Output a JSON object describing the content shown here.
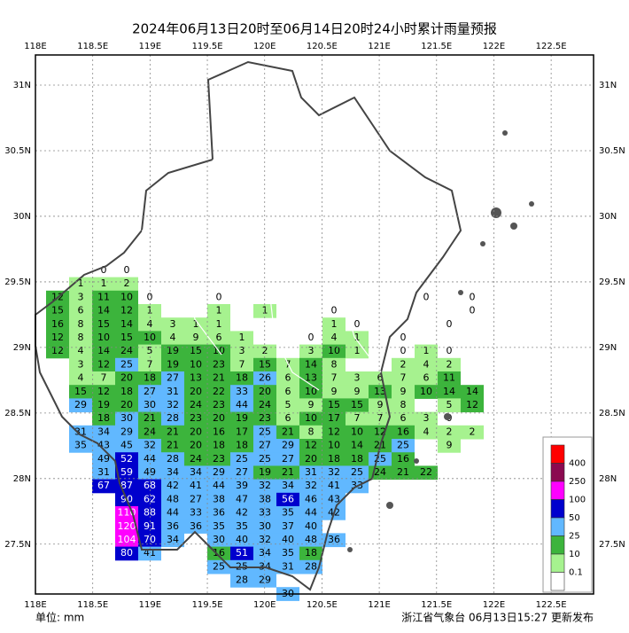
{
  "title": "2024年06月13日20时至06月14日20时24小时累计雨量预报",
  "unit": "单位: mm",
  "footer": "浙江省气象台 06月13日15:27 更新发布",
  "xlim": [
    118,
    122.87
  ],
  "ylim": [
    27.12,
    31.23
  ],
  "xticks": [
    {
      "value": 118,
      "label": "118E"
    },
    {
      "value": 118.5,
      "label": "118.5E"
    },
    {
      "value": 119,
      "label": "119E"
    },
    {
      "value": 119.5,
      "label": "119.5E"
    },
    {
      "value": 120,
      "label": "120E"
    },
    {
      "value": 120.5,
      "label": "120.5E"
    },
    {
      "value": 121,
      "label": "121E"
    },
    {
      "value": 121.5,
      "label": "121.5E"
    },
    {
      "value": 122,
      "label": "122E"
    },
    {
      "value": 122.5,
      "label": "122.5E"
    }
  ],
  "yticks": [
    {
      "value": 31,
      "label": "31N"
    },
    {
      "value": 30.5,
      "label": "30.5N"
    },
    {
      "value": 30,
      "label": "30N"
    },
    {
      "value": 29.5,
      "label": "29.5N"
    },
    {
      "value": 29,
      "label": "29N"
    },
    {
      "value": 28.5,
      "label": "28.5N"
    },
    {
      "value": 28,
      "label": "28N"
    },
    {
      "value": 27.5,
      "label": "27.5N"
    }
  ],
  "legend": [
    {
      "value": 400,
      "color": "#ff0000"
    },
    {
      "value": 250,
      "color": "#8b0a50"
    },
    {
      "value": 100,
      "color": "#ff00ff"
    },
    {
      "value": 50,
      "color": "#0000cd"
    },
    {
      "value": 25,
      "color": "#61b8ff"
    },
    {
      "value": 10,
      "color": "#3cb43c"
    },
    {
      "value": 0.1,
      "color": "#a6f28f"
    }
  ],
  "grid": [
    [
      null,
      null,
      0,
      0
    ],
    [
      null,
      1,
      1,
      2
    ],
    [
      12,
      3,
      11,
      10,
      0,
      null,
      null,
      0,
      null,
      null,
      null,
      null,
      null,
      null,
      null,
      null,
      0,
      null,
      0
    ],
    [
      15,
      6,
      14,
      12,
      1,
      null,
      null,
      1,
      null,
      1,
      null,
      null,
      0,
      null,
      null,
      null,
      null,
      null,
      0
    ],
    [
      16,
      8,
      15,
      14,
      4,
      3,
      1,
      1,
      null,
      null,
      null,
      null,
      1,
      0,
      null,
      null,
      null,
      0
    ],
    [
      12,
      8,
      10,
      15,
      10,
      4,
      9,
      6,
      1,
      null,
      null,
      0,
      4,
      1,
      null,
      0
    ],
    [
      12,
      4,
      14,
      24,
      5,
      19,
      15,
      10,
      3,
      2,
      null,
      3,
      10,
      1,
      null,
      0,
      1,
      0
    ],
    [
      null,
      3,
      12,
      25,
      7,
      19,
      10,
      23,
      7,
      15,
      7,
      14,
      8,
      null,
      null,
      2,
      4,
      2
    ],
    [
      null,
      4,
      7,
      20,
      18,
      27,
      13,
      21,
      18,
      26,
      6,
      13,
      7,
      3,
      6,
      7,
      6,
      11
    ],
    [
      null,
      15,
      12,
      18,
      27,
      31,
      20,
      22,
      33,
      20,
      6,
      10,
      9,
      9,
      13,
      9,
      10,
      14,
      14
    ],
    [
      null,
      29,
      19,
      20,
      30,
      32,
      24,
      23,
      44,
      24,
      5,
      9,
      15,
      15,
      9,
      8,
      null,
      5,
      12
    ],
    [
      null,
      null,
      18,
      30,
      21,
      28,
      23,
      20,
      19,
      23,
      6,
      10,
      17,
      7,
      7,
      6,
      3,
      0
    ],
    [
      null,
      31,
      34,
      29,
      24,
      21,
      20,
      16,
      17,
      25,
      21,
      8,
      12,
      10,
      12,
      16,
      4,
      2,
      2
    ],
    [
      null,
      35,
      43,
      45,
      32,
      21,
      20,
      18,
      18,
      27,
      29,
      12,
      10,
      14,
      21,
      25,
      null,
      9
    ],
    [
      null,
      null,
      49,
      52,
      44,
      28,
      24,
      23,
      25,
      25,
      27,
      20,
      18,
      18,
      25,
      16
    ],
    [
      null,
      null,
      31,
      59,
      49,
      34,
      34,
      29,
      27,
      19,
      21,
      31,
      32,
      25,
      24,
      21,
      22
    ],
    [
      null,
      null,
      67,
      87,
      68,
      42,
      41,
      44,
      39,
      32,
      34,
      32,
      41,
      33
    ],
    [
      null,
      null,
      null,
      90,
      62,
      48,
      27,
      38,
      47,
      38,
      56,
      46,
      43
    ],
    [
      null,
      null,
      null,
      110,
      88,
      44,
      33,
      36,
      42,
      33,
      35,
      44,
      42
    ],
    [
      null,
      null,
      null,
      120,
      91,
      36,
      36,
      35,
      35,
      30,
      37,
      40
    ],
    [
      null,
      null,
      null,
      104,
      70,
      34,
      null,
      30,
      40,
      32,
      40,
      48,
      36
    ],
    [
      null,
      null,
      null,
      80,
      41,
      null,
      null,
      16,
      51,
      34,
      35,
      18
    ],
    [
      null,
      null,
      null,
      null,
      null,
      null,
      null,
      25,
      25,
      34,
      31,
      28
    ],
    [
      null,
      null,
      null,
      null,
      null,
      null,
      null,
      null,
      28,
      29
    ],
    [
      null,
      null,
      null,
      null,
      null,
      null,
      null,
      null,
      null,
      null,
      30
    ]
  ]
}
